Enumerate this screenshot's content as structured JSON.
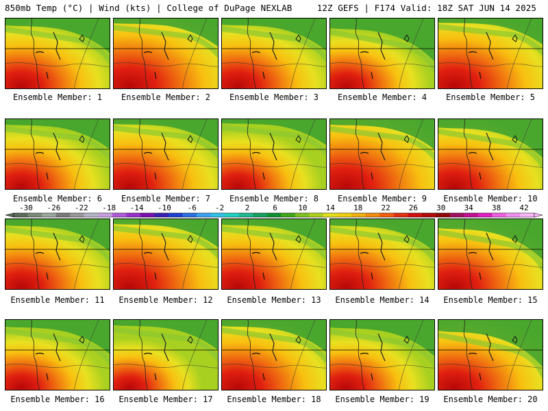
{
  "header": {
    "left": "850mb Temp (°C) | Wind (kts) | College of DuPage NEXLAB",
    "right": "12Z GEFS | F174 Valid: 18Z SAT JUN 14 2025"
  },
  "panels": [
    {
      "label": "Ensemble Member: 1"
    },
    {
      "label": "Ensemble Member: 2"
    },
    {
      "label": "Ensemble Member: 3"
    },
    {
      "label": "Ensemble Member: 4"
    },
    {
      "label": "Ensemble Member: 5"
    },
    {
      "label": "Ensemble Member: 6"
    },
    {
      "label": "Ensemble Member: 7"
    },
    {
      "label": "Ensemble Member: 8"
    },
    {
      "label": "Ensemble Member: 9"
    },
    {
      "label": "Ensemble Member: 10"
    },
    {
      "label": "Ensemble Member: 11"
    },
    {
      "label": "Ensemble Member: 12"
    },
    {
      "label": "Ensemble Member: 13"
    },
    {
      "label": "Ensemble Member: 14"
    },
    {
      "label": "Ensemble Member: 15"
    },
    {
      "label": "Ensemble Member: 16"
    },
    {
      "label": "Ensemble Member: 17"
    },
    {
      "label": "Ensemble Member: 18"
    },
    {
      "label": "Ensemble Member: 19"
    },
    {
      "label": "Ensemble Member: 20"
    }
  ],
  "colorbar": {
    "ticks": [
      "-30",
      "-26",
      "-22",
      "-18",
      "-14",
      "-10",
      "-6",
      "-2",
      "2",
      "6",
      "10",
      "14",
      "18",
      "22",
      "26",
      "30",
      "34",
      "38",
      "42"
    ],
    "colors": [
      "#5a6b5a",
      "#7a8a7a",
      "#9aa69a",
      "#7a7a7a",
      "#989898",
      "#b4b4c8",
      "#c8a0e0",
      "#b05cd8",
      "#9630c8",
      "#7a10b0",
      "#3a20b0",
      "#1e40d0",
      "#2a70e0",
      "#3aa0f0",
      "#30c0e8",
      "#20d0c0",
      "#20b890",
      "#18a060",
      "#109030",
      "#40a818",
      "#80c020",
      "#b0d020",
      "#e0e020",
      "#f0d010",
      "#f0b010",
      "#f08c10",
      "#f06010",
      "#e03010",
      "#d01010",
      "#b00a0a",
      "#900808",
      "#a01060",
      "#c01090",
      "#e020c0",
      "#f060e0",
      "#f090f0",
      "#f8b8f8"
    ]
  }
}
